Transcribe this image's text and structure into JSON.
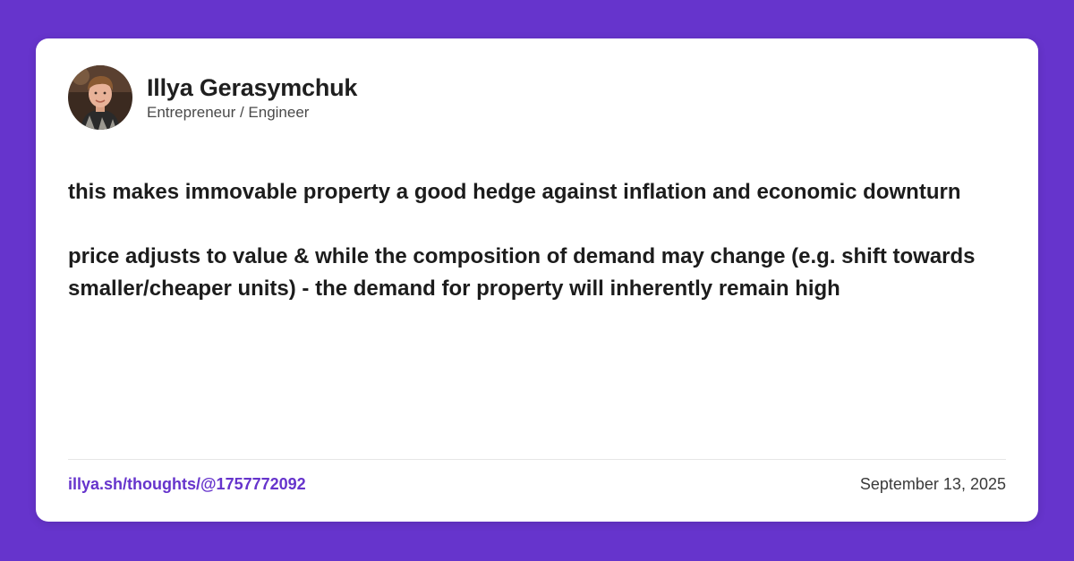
{
  "colors": {
    "background": "#6634cc",
    "card": "#ffffff",
    "accent": "#6634cc"
  },
  "author": {
    "name": "Illya Gerasymchuk",
    "role": "Entrepreneur / Engineer"
  },
  "post": {
    "paragraphs": [
      "this makes immovable property a good hedge against inflation and economic downturn",
      "price adjusts to value & while the composition of demand may change (e.g. shift towards smaller/cheaper units) - the demand for property will inherently remain high"
    ]
  },
  "footer": {
    "link": "illya.sh/thoughts/@1757772092",
    "date": "September 13, 2025"
  }
}
